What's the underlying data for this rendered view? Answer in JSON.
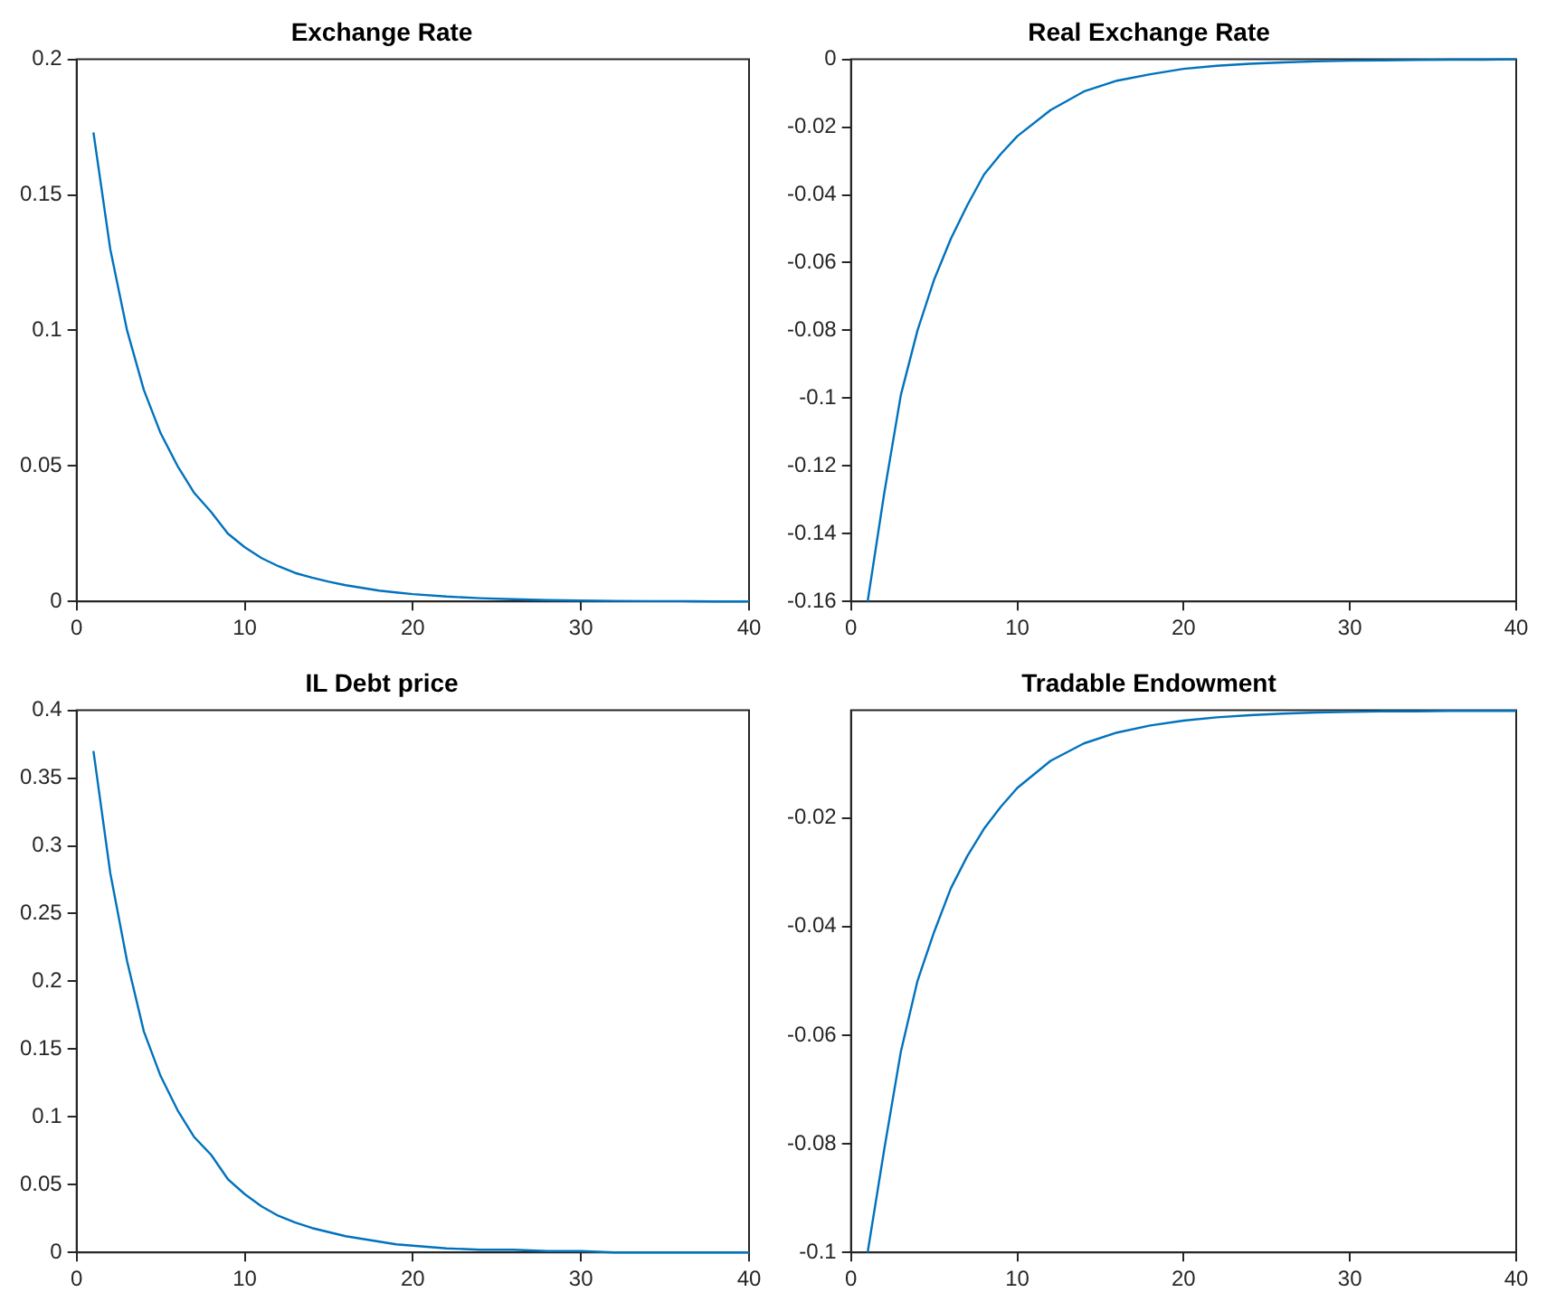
{
  "chart_data": [
    {
      "type": "line",
      "title": "Exchange Rate",
      "x": [
        1,
        2,
        3,
        4,
        5,
        6,
        7,
        8,
        9,
        10,
        11,
        12,
        13,
        14,
        15,
        16,
        17,
        18,
        19,
        20,
        22,
        24,
        26,
        28,
        30,
        32,
        34,
        36,
        38,
        40
      ],
      "series": [
        {
          "color": "#0072bd",
          "values": [
            0.173,
            0.13,
            0.1,
            0.078,
            0.062,
            0.05,
            0.04,
            0.033,
            0.025,
            0.02,
            0.016,
            0.013,
            0.0105,
            0.0088,
            0.0073,
            0.006,
            0.005,
            0.004,
            0.0033,
            0.0027,
            0.0018,
            0.0012,
            0.0008,
            0.0005,
            0.0003,
            0.0002,
            0.0001,
            0.0001,
            0,
            0
          ]
        }
      ],
      "xlim": [
        0,
        40
      ],
      "xticks": [
        0,
        10,
        20,
        30,
        40
      ],
      "ylim": [
        0,
        0.2
      ],
      "yticks": [
        0,
        0.05,
        0.1,
        0.15,
        0.2
      ],
      "grid": false,
      "legend": false
    },
    {
      "type": "line",
      "title": "Real Exchange Rate",
      "x": [
        1,
        2,
        3,
        4,
        5,
        6,
        7,
        8,
        9,
        10,
        12,
        14,
        16,
        18,
        20,
        22,
        24,
        26,
        28,
        30,
        32,
        34,
        36,
        38,
        40
      ],
      "series": [
        {
          "color": "#0072bd",
          "values": [
            -0.16,
            -0.128,
            -0.099,
            -0.08,
            -0.065,
            -0.053,
            -0.043,
            -0.034,
            -0.028,
            -0.0227,
            -0.015,
            -0.0095,
            -0.0063,
            -0.0044,
            -0.0028,
            -0.0019,
            -0.0013,
            -0.0009,
            -0.0006,
            -0.0004,
            -0.0003,
            -0.0002,
            -0.0001,
            -0.0001,
            0
          ]
        }
      ],
      "xlim": [
        0,
        40
      ],
      "xticks": [
        0,
        10,
        20,
        30,
        40
      ],
      "ylim": [
        -0.16,
        0
      ],
      "yticks": [
        -0.16,
        -0.14,
        -0.12,
        -0.1,
        -0.08,
        -0.06,
        -0.04,
        -0.02,
        0
      ],
      "grid": false,
      "legend": false
    },
    {
      "type": "line",
      "title": "IL Debt price",
      "x": [
        1,
        2,
        3,
        4,
        5,
        6,
        7,
        8,
        9,
        10,
        11,
        12,
        13,
        14,
        15,
        16,
        17,
        18,
        19,
        20,
        22,
        24,
        26,
        28,
        30,
        32,
        34,
        36,
        38,
        40
      ],
      "series": [
        {
          "color": "#0072bd",
          "values": [
            0.37,
            0.28,
            0.215,
            0.163,
            0.13,
            0.105,
            0.085,
            0.072,
            0.054,
            0.043,
            0.034,
            0.027,
            0.022,
            0.018,
            0.015,
            0.012,
            0.01,
            0.008,
            0.006,
            0.005,
            0.003,
            0.002,
            0.002,
            0.001,
            0.001,
            0,
            0,
            0,
            0,
            0
          ]
        }
      ],
      "xlim": [
        0,
        40
      ],
      "xticks": [
        0,
        10,
        20,
        30,
        40
      ],
      "ylim": [
        0,
        0.4
      ],
      "yticks": [
        0,
        0.05,
        0.1,
        0.15,
        0.2,
        0.25,
        0.3,
        0.35,
        0.4
      ],
      "grid": false,
      "legend": false
    },
    {
      "type": "line",
      "title": "Tradable Endowment",
      "x": [
        1,
        2,
        3,
        4,
        5,
        6,
        7,
        8,
        9,
        10,
        12,
        14,
        16,
        18,
        20,
        22,
        24,
        26,
        28,
        30,
        32,
        34,
        36,
        38,
        40
      ],
      "series": [
        {
          "color": "#0072bd",
          "values": [
            -0.1,
            -0.081,
            -0.063,
            -0.05,
            -0.041,
            -0.033,
            -0.027,
            -0.022,
            -0.018,
            -0.0145,
            -0.0095,
            -0.0063,
            -0.0043,
            -0.003,
            -0.0021,
            -0.0015,
            -0.0011,
            -0.0008,
            -0.0006,
            -0.0005,
            -0.0004,
            -0.0004,
            -0.0003,
            -0.0003,
            -0.0003
          ]
        }
      ],
      "xlim": [
        0,
        40
      ],
      "xticks": [
        0,
        10,
        20,
        30,
        40
      ],
      "ylim": [
        -0.1,
        -0.0002
      ],
      "yticks": [
        -0.1,
        -0.08,
        -0.06,
        -0.04,
        -0.02
      ],
      "grid": false,
      "legend": false
    }
  ]
}
